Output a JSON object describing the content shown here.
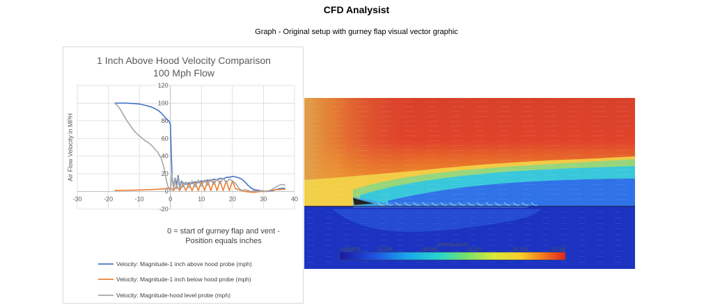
{
  "header": {
    "title": "CFD Analysist",
    "subtitle": "Graph - Original setup with gurney flap visual vector graphic"
  },
  "chart_data": {
    "type": "line",
    "title": "1 Inch Above Hood Velocity Comparison",
    "subtitle": "100 Mph Flow",
    "xlabel": "0 = start of gurney flap and vent - Position equals inches",
    "ylabel": "Air Flow Velocity in MPH",
    "xlim": [
      -30,
      40
    ],
    "ylim": [
      -20,
      120
    ],
    "xticks": [
      "-30",
      "-20",
      "-10",
      "0",
      "10",
      "20",
      "30",
      "40"
    ],
    "yticks": [
      "-20",
      "0",
      "20",
      "40",
      "60",
      "80",
      "100",
      "120"
    ],
    "grid": true,
    "legend_position": "bottom",
    "series": [
      {
        "name": "Velocity: Magnitude-1 inch above hood probe (mph)",
        "color": "#4472c4",
        "x": [
          -18,
          -16,
          -14,
          -12,
          -10,
          -8,
          -6,
          -4,
          -3,
          -2,
          -1,
          -0.5,
          0,
          0.3,
          0.6,
          1,
          1.5,
          2,
          2.5,
          3,
          3.5,
          4,
          5,
          6,
          7,
          8,
          9,
          10,
          11,
          12,
          13,
          14,
          15,
          16,
          17,
          18,
          19,
          20,
          21,
          22,
          23,
          24,
          25,
          26,
          27,
          28,
          29,
          30,
          31,
          32,
          33,
          34,
          35,
          36,
          37
        ],
        "y": [
          100,
          100,
          100,
          99.5,
          99,
          97.5,
          95.5,
          92,
          89,
          85,
          81,
          80,
          76,
          40,
          12,
          6,
          15,
          8,
          18,
          5,
          12,
          10,
          8,
          10,
          9,
          11,
          10,
          12,
          11,
          13,
          12,
          14,
          13,
          15,
          14,
          16,
          16,
          17,
          16.5,
          15.5,
          14,
          11,
          7,
          4,
          2,
          1.5,
          1,
          0.5,
          0,
          0.5,
          1,
          2,
          3,
          3.5,
          3.5
        ]
      },
      {
        "name": "Velocity: Magnitude-1 inch below hood probe (mph)",
        "color": "#ed7d31",
        "x": [
          -18,
          -15,
          -12,
          -9,
          -6,
          -4,
          -2,
          -1,
          0,
          1,
          2,
          3,
          4,
          5,
          6,
          7,
          8,
          9,
          10,
          11,
          12,
          13,
          14,
          15,
          16,
          17,
          18,
          19,
          20,
          21,
          22,
          23,
          24,
          25,
          26,
          27,
          28,
          29,
          30,
          31,
          32,
          33,
          34,
          35,
          36,
          37
        ],
        "y": [
          1,
          1.2,
          1.5,
          1.8,
          2.2,
          2.6,
          3,
          3.5,
          4,
          1,
          6,
          1,
          8,
          1,
          9,
          1,
          10,
          1,
          11,
          1,
          12,
          1,
          12,
          1,
          12,
          1,
          12,
          1,
          12,
          3,
          2,
          1,
          0,
          -0.5,
          -0.8,
          -1,
          -0.5,
          0,
          0.2,
          0.5,
          1,
          1.5,
          2,
          2.2,
          2.4,
          2.5
        ]
      },
      {
        "name": "Velocity: Magnitude-hood level probe (mph)",
        "color": "#a5a5a5",
        "x": [
          -18,
          -17,
          -16,
          -15,
          -14,
          -13,
          -12,
          -11,
          -10,
          -9,
          -8,
          -7,
          -6,
          -5,
          -4,
          -3,
          -2.5,
          -2,
          -1.5,
          -1,
          -0.5,
          0,
          0.5,
          1,
          1.5,
          2,
          2.5,
          3,
          3.5,
          4,
          5,
          6,
          7,
          8,
          9,
          10,
          11,
          12,
          13,
          14,
          15,
          16,
          17,
          18,
          19,
          20,
          21,
          22,
          23,
          24,
          25,
          26,
          27,
          28,
          29,
          30,
          31,
          32,
          33,
          34,
          35,
          36,
          37
        ],
        "y": [
          100,
          97,
          92,
          86,
          80,
          75,
          70,
          66,
          63,
          60,
          57,
          55,
          52,
          48,
          44,
          38,
          32,
          26,
          16,
          8,
          3,
          1,
          20,
          2,
          14,
          3,
          16,
          2,
          12,
          5,
          11,
          4,
          12,
          5,
          13,
          6,
          13,
          7,
          14,
          8,
          14,
          9,
          15,
          10,
          14,
          12,
          9,
          4,
          1,
          2,
          1,
          0,
          1,
          0,
          1,
          0,
          0,
          1,
          3,
          5,
          7,
          8,
          7
        ]
      }
    ]
  },
  "cfd": {
    "colorbar_title": "Velocity (mph)",
    "colorbar_ticks": [
      "0.001875",
      "22.534",
      "45.065",
      "67.597",
      "90.129",
      "112.66"
    ]
  }
}
